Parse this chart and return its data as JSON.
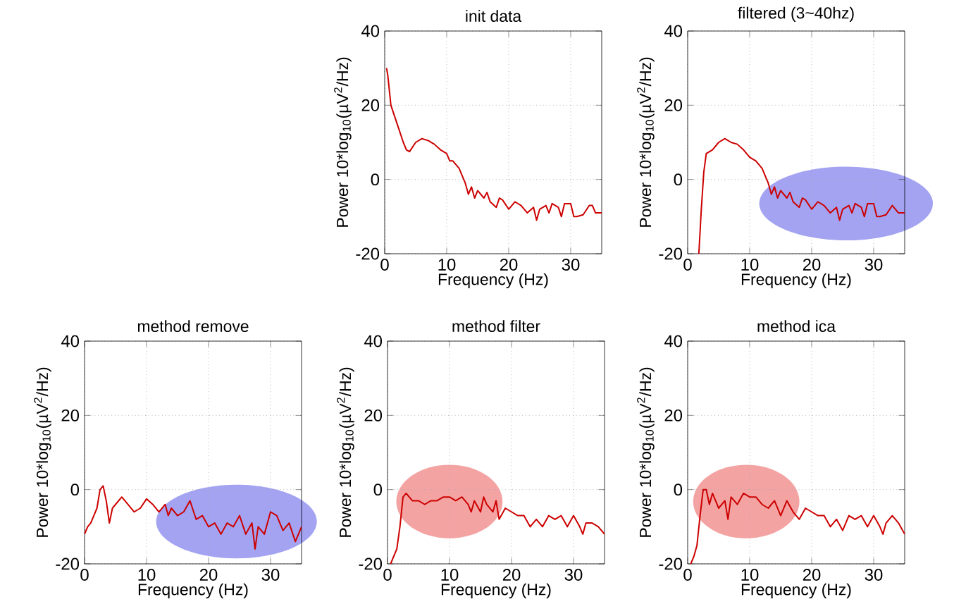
{
  "chart_data": [
    {
      "type": "line",
      "title": "init data",
      "xlabel": "Frequency (Hz)",
      "ylabel": "Power 10*log$_{10}$(µV$^{2}$/Hz)",
      "xlim": [
        0,
        35
      ],
      "ylim": [
        -20,
        40
      ],
      "xticks": [
        0,
        10,
        20,
        30
      ],
      "yticks": [
        -20,
        0,
        20,
        40
      ],
      "grid": true,
      "series": [
        {
          "color": "#cc0000",
          "x": [
            0.3,
            0.5,
            1,
            2,
            3,
            3.5,
            4,
            5,
            6,
            7,
            8,
            9,
            10,
            10.5,
            11,
            12,
            13,
            13.5,
            14,
            14.5,
            15,
            16,
            16.5,
            17,
            18,
            18.5,
            19,
            20,
            21,
            22,
            23,
            24,
            24.5,
            25,
            26,
            26.5,
            27,
            28,
            28.5,
            29,
            30,
            30.5,
            31,
            32,
            33,
            33.5,
            34,
            35
          ],
          "values": [
            30,
            28,
            20,
            15,
            10,
            8,
            7.5,
            10,
            11,
            10.5,
            9.5,
            8,
            7,
            5,
            5,
            3,
            -1,
            -4,
            -2,
            -5,
            -3,
            -5,
            -3.5,
            -6,
            -7.5,
            -5,
            -5.5,
            -8,
            -6,
            -7,
            -9,
            -7.5,
            -11,
            -8,
            -7,
            -9,
            -6.5,
            -7.5,
            -10,
            -6.5,
            -6.5,
            -10,
            -10,
            -9.5,
            -7,
            -7,
            -9,
            -9
          ]
        }
      ]
    },
    {
      "type": "line",
      "title": "filtered (3~40hz)",
      "xlabel": "Frequency (Hz)",
      "ylabel": "Power 10*log$_{10}$(µV$^{2}$/Hz)",
      "xlim": [
        0,
        35
      ],
      "ylim": [
        -20,
        40
      ],
      "xticks": [
        0,
        10,
        20,
        30
      ],
      "yticks": [
        -20,
        0,
        20,
        40
      ],
      "grid": true,
      "series": [
        {
          "color": "#cc0000",
          "x": [
            1.8,
            2.2,
            2.6,
            3,
            4,
            5,
            6,
            7,
            8,
            9,
            10,
            11,
            12,
            13,
            13.5,
            14,
            14.5,
            15,
            16,
            16.5,
            17,
            18,
            18.5,
            19,
            20,
            21,
            22,
            23,
            24,
            24.5,
            25,
            26,
            26.5,
            27,
            28,
            28.5,
            29,
            30,
            30.5,
            31,
            32,
            33,
            34,
            35
          ],
          "values": [
            -20,
            -8,
            2,
            7,
            8,
            10,
            11,
            10,
            9.5,
            8,
            6,
            5,
            3,
            -1,
            -4,
            -2,
            -5,
            -3,
            -5,
            -3.5,
            -6,
            -7.5,
            -5,
            -5.5,
            -8,
            -6,
            -7,
            -9,
            -7.5,
            -11,
            -8,
            -7,
            -9,
            -6.5,
            -7.5,
            -10,
            -6.5,
            -6.5,
            -10,
            -10,
            -9.5,
            -7,
            -9,
            -9
          ]
        }
      ]
    },
    {
      "type": "line",
      "title": "method remove",
      "xlabel": "Frequency (Hz)",
      "ylabel": "Power 10*log$_{10}$(µV$^{2}$/Hz)",
      "xlim": [
        0,
        35
      ],
      "ylim": [
        -20,
        40
      ],
      "xticks": [
        0,
        10,
        20,
        30
      ],
      "yticks": [
        -20,
        0,
        20,
        40
      ],
      "grid": true,
      "series": [
        {
          "color": "#cc0000",
          "x": [
            0,
            0.5,
            1,
            2,
            2.5,
            3,
            3.5,
            4,
            4.5,
            5,
            6,
            7,
            8,
            9,
            10,
            11,
            12,
            13,
            13.5,
            14,
            15,
            16,
            17,
            18,
            19,
            20,
            21,
            22,
            23,
            24,
            25,
            26,
            27,
            27.5,
            28,
            29,
            30,
            31,
            32,
            33,
            34,
            35
          ],
          "values": [
            -12,
            -10,
            -9,
            -5,
            0,
            1,
            -3,
            -9,
            -5,
            -4,
            -2,
            -4,
            -6,
            -5,
            -2.5,
            -4,
            -6,
            -4,
            -7,
            -5,
            -7,
            -6,
            -3,
            -8,
            -7,
            -10,
            -9,
            -12,
            -9,
            -10,
            -7,
            -12,
            -9,
            -16,
            -10,
            -12,
            -6,
            -7,
            -11,
            -9,
            -14,
            -10
          ]
        }
      ]
    },
    {
      "type": "line",
      "title": "method filter",
      "xlabel": "Frequency (Hz)",
      "ylabel": "Power 10*log$_{10}$(µV$^{2}$/Hz)",
      "xlim": [
        0,
        35
      ],
      "ylim": [
        -20,
        40
      ],
      "xticks": [
        0,
        10,
        20,
        30
      ],
      "yticks": [
        -20,
        0,
        20,
        40
      ],
      "grid": true,
      "series": [
        {
          "color": "#cc0000",
          "x": [
            0.5,
            1,
            1.5,
            2,
            2.5,
            3,
            4,
            5,
            6,
            7,
            8,
            9,
            10,
            11,
            12,
            13,
            13.5,
            14,
            15,
            15.5,
            16,
            17,
            17.5,
            18,
            19,
            20,
            21,
            22,
            23,
            24,
            25,
            26,
            27,
            28,
            29,
            30,
            31,
            31.5,
            32,
            33,
            34,
            35
          ],
          "values": [
            -20,
            -18,
            -16,
            -10,
            -2,
            -1,
            -3,
            -3,
            -4,
            -3,
            -3,
            -2,
            -2,
            -3,
            -2,
            -4,
            -6,
            -3,
            -6,
            -2,
            -4,
            -6,
            -3,
            -8,
            -5,
            -6,
            -7,
            -7,
            -10,
            -8,
            -10,
            -7,
            -8,
            -7,
            -10,
            -7,
            -10,
            -12,
            -9,
            -9,
            -10,
            -12
          ]
        }
      ]
    },
    {
      "type": "line",
      "title": "method ica",
      "xlabel": "Frequency (Hz)",
      "ylabel": "Power 10*log$_{10}$(µV$^{2}$/Hz)",
      "xlim": [
        0,
        35
      ],
      "ylim": [
        -20,
        40
      ],
      "xticks": [
        0,
        10,
        20,
        30
      ],
      "yticks": [
        -20,
        0,
        20,
        40
      ],
      "grid": true,
      "series": [
        {
          "color": "#cc0000",
          "x": [
            0.5,
            1,
            1.5,
            2,
            2.5,
            3,
            3.5,
            4,
            5,
            6,
            6.5,
            7,
            8,
            9,
            10,
            11,
            12,
            13,
            14,
            15,
            16,
            17,
            18,
            19,
            20,
            21,
            22,
            23,
            24,
            25,
            26,
            27,
            28,
            29,
            30,
            31,
            31.5,
            32,
            33,
            34,
            35
          ],
          "values": [
            -20,
            -18,
            -15,
            -7,
            0,
            0,
            -4,
            -1,
            -5,
            -3,
            -8,
            -2,
            -4,
            -1,
            -2,
            -2,
            -4,
            -5,
            -3,
            -7,
            -3,
            -6,
            -8,
            -5,
            -6,
            -7,
            -7,
            -10,
            -8,
            -11,
            -7,
            -8,
            -7,
            -10,
            -7,
            -10,
            -12,
            -9,
            -7,
            -9,
            -12
          ]
        }
      ]
    }
  ]
}
